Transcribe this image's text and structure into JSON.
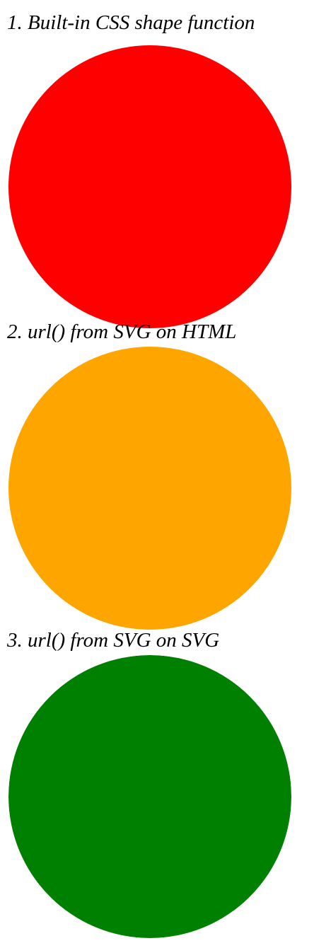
{
  "sections": [
    {
      "title": "1. Built-in CSS shape function",
      "shape": "circle",
      "color": "#ff0000"
    },
    {
      "title": "2. url() from SVG on HTML",
      "shape": "circle",
      "color": "#ffa500"
    },
    {
      "title": "3. url() from SVG on SVG",
      "shape": "circle",
      "color": "#008000"
    }
  ]
}
